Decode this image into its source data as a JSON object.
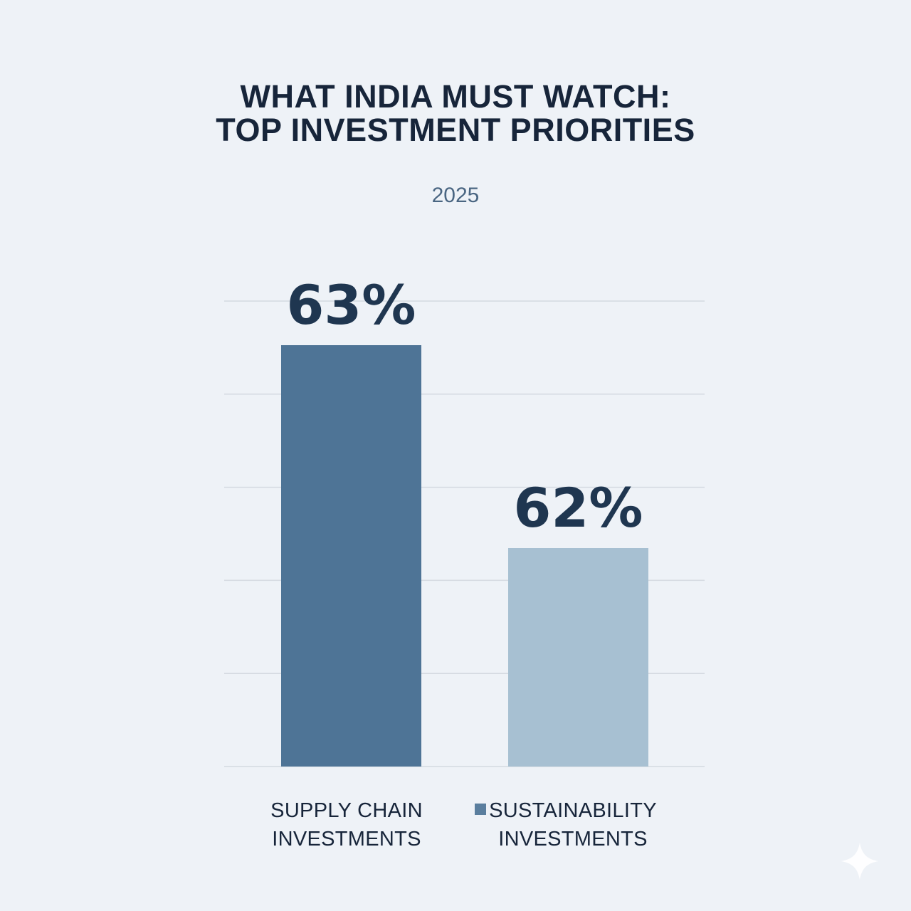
{
  "chart_data": {
    "type": "bar",
    "title_lines": [
      "WHAT INDIA MUST WATCH:",
      "TOP INVESTMENT PRIORITIES"
    ],
    "subtitle": "2025",
    "categories": [
      [
        "SUPPLY CHAIN",
        "INVESTMENTS"
      ],
      [
        "SUSTAINABILITY",
        "INVESTMENTS"
      ]
    ],
    "values": [
      63,
      62
    ],
    "value_labels": [
      "63%",
      "62%"
    ],
    "colors": [
      "#4e7496",
      "#a7c0d2"
    ],
    "legend_marker_color": "#5a7e9e",
    "gridlines": 6,
    "grid": true
  }
}
